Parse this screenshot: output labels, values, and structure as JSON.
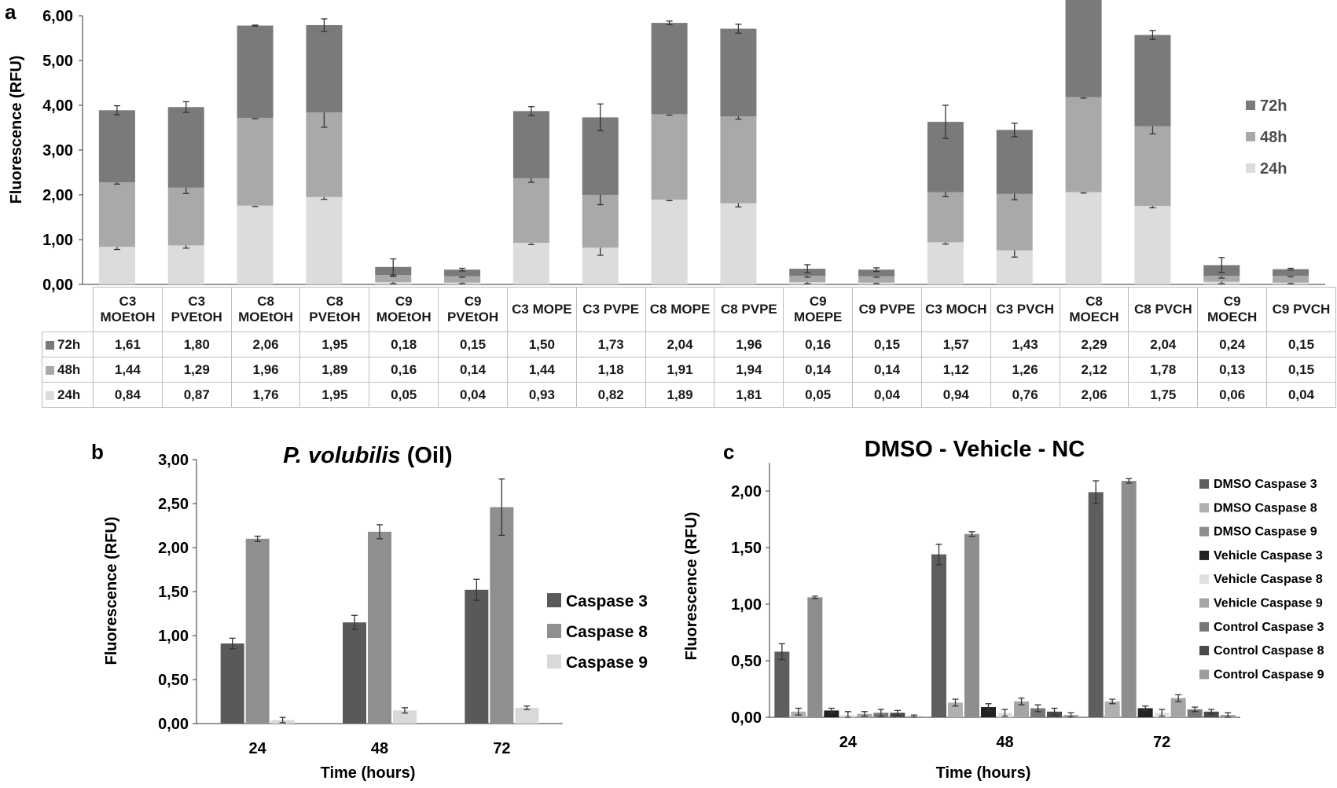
{
  "panel_labels": {
    "a": "a",
    "b": "b",
    "c": "c"
  },
  "colors": {
    "h72": "#7a7a7a",
    "h48": "#a9a9a9",
    "h24": "#dcdcdc",
    "cas3": "#595959",
    "cas8": "#8f8f8f",
    "cas9": "#d9d9d9",
    "dmso3": "#5e5e5e",
    "dmso8": "#b0b0b0",
    "dmso9": "#8e8e8e",
    "veh3": "#222222",
    "veh8": "#e0e0e0",
    "veh9": "#a5a5a5",
    "ctl3": "#777777",
    "ctl8": "#4a4a4a",
    "ctl9": "#9c9c9c",
    "error_bar": "#333333",
    "axis": "#333333"
  },
  "chart_data": [
    {
      "panel": "a",
      "type": "bar",
      "stacked": true,
      "title": "",
      "xlabel": "",
      "ylabel": "Fluorescence (RFU)",
      "ylim": [
        0,
        6
      ],
      "yticks": [
        "0,00",
        "1,00",
        "2,00",
        "3,00",
        "4,00",
        "5,00",
        "6,00"
      ],
      "categories": [
        [
          "C3",
          "MOEtOH"
        ],
        [
          "C3",
          "PVEtOH"
        ],
        [
          "C8",
          "MOEtOH"
        ],
        [
          "C8",
          "PVEtOH"
        ],
        [
          "C9",
          "MOEtOH"
        ],
        [
          "C9",
          "PVEtOH"
        ],
        [
          "C3 MOPE"
        ],
        [
          "C3 PVPE"
        ],
        [
          "C8 MOPE"
        ],
        [
          "C8 PVPE"
        ],
        [
          "C9",
          "MOEPE"
        ],
        [
          "C9 PVPE"
        ],
        [
          "C3 MOCH"
        ],
        [
          "C3 PVCH"
        ],
        [
          "C8",
          "MOECH"
        ],
        [
          "C8 PVCH"
        ],
        [
          "C9",
          "MOECH"
        ],
        [
          "C9 PVCH"
        ]
      ],
      "series": [
        {
          "name": "24h",
          "color_key": "h24",
          "values": [
            0.84,
            0.87,
            1.76,
            1.95,
            0.05,
            0.04,
            0.93,
            0.82,
            1.89,
            1.81,
            0.05,
            0.04,
            0.94,
            0.76,
            2.06,
            1.75,
            0.06,
            0.04
          ],
          "labels": [
            "0,84",
            "0,87",
            "1,76",
            "1,95",
            "0,05",
            "0,04",
            "0,93",
            "0,82",
            "1,89",
            "1,81",
            "0,05",
            "0,04",
            "0,94",
            "0,76",
            "2,06",
            "1,75",
            "0,06",
            "0,04"
          ],
          "errors": [
            0.06,
            0.06,
            0.02,
            0.05,
            0.03,
            0.02,
            0.04,
            0.17,
            0.02,
            0.08,
            0.03,
            0.02,
            0.04,
            0.15,
            0.02,
            0.04,
            0.04,
            0.02
          ]
        },
        {
          "name": "48h",
          "color_key": "h48",
          "values": [
            1.44,
            1.29,
            1.96,
            1.89,
            0.16,
            0.14,
            1.44,
            1.18,
            1.91,
            1.94,
            0.14,
            0.14,
            1.12,
            1.26,
            2.12,
            1.78,
            0.13,
            0.15
          ],
          "labels": [
            "1,44",
            "1,29",
            "1,96",
            "1,89",
            "0,16",
            "0,14",
            "1,44",
            "1,18",
            "1,91",
            "1,94",
            "0,14",
            "0,14",
            "1,12",
            "1,26",
            "2,12",
            "1,78",
            "0,13",
            "0,15"
          ],
          "errors": [
            0.04,
            0.13,
            0.02,
            0.33,
            0.03,
            0.02,
            0.09,
            0.22,
            0.02,
            0.06,
            0.03,
            0.02,
            0.1,
            0.13,
            0.02,
            0.17,
            0.05,
            0.02
          ]
        },
        {
          "name": "72h",
          "color_key": "h72",
          "values": [
            1.61,
            1.8,
            2.06,
            1.95,
            0.18,
            0.15,
            1.5,
            1.73,
            2.04,
            1.96,
            0.16,
            0.15,
            1.57,
            1.43,
            2.29,
            2.04,
            0.24,
            0.15
          ],
          "labels": [
            "1,61",
            "1,80",
            "2,06",
            "1,95",
            "0,18",
            "0,15",
            "1,50",
            "1,73",
            "2,04",
            "1,96",
            "0,16",
            "0,15",
            "1,57",
            "1,43",
            "2,29",
            "2,04",
            "0,24",
            "0,15"
          ],
          "errors": [
            0.1,
            0.12,
            0.01,
            0.14,
            0.18,
            0.03,
            0.1,
            0.3,
            0.04,
            0.1,
            0.09,
            0.04,
            0.37,
            0.15,
            0.02,
            0.1,
            0.17,
            0.02
          ]
        }
      ],
      "legend": [
        "72h",
        "48h",
        "24h"
      ],
      "legend_position": "right"
    },
    {
      "panel": "b",
      "type": "bar",
      "title_italic": "P. volubilis",
      "title_rest": " (Oil)",
      "xlabel": "Time (hours)",
      "ylabel": "Fluorescence (RFU)",
      "ylim": [
        0,
        3
      ],
      "yticks": [
        "0,00",
        "0,50",
        "1,00",
        "1,50",
        "2,00",
        "2,50",
        "3,00"
      ],
      "categories": [
        "24",
        "48",
        "72"
      ],
      "series": [
        {
          "name": "Caspase 3",
          "color_key": "cas3",
          "values": [
            0.91,
            1.15,
            1.52
          ],
          "errors": [
            0.06,
            0.08,
            0.12
          ]
        },
        {
          "name": "Caspase 8",
          "color_key": "cas8",
          "values": [
            2.1,
            2.18,
            2.46
          ],
          "errors": [
            0.03,
            0.08,
            0.32
          ]
        },
        {
          "name": "Caspase 9",
          "color_key": "cas9",
          "values": [
            0.04,
            0.15,
            0.18
          ],
          "errors": [
            0.03,
            0.03,
            0.02
          ]
        }
      ],
      "legend_position": "right"
    },
    {
      "panel": "c",
      "type": "bar",
      "title": "DMSO - Vehicle - NC",
      "xlabel": "Time (hours)",
      "ylabel": "Fluorescence (RFU)",
      "ylim": [
        0,
        2.25
      ],
      "yticks": [
        "0,00",
        "0,50",
        "1,00",
        "1,50",
        "2,00"
      ],
      "categories": [
        "24",
        "48",
        "72"
      ],
      "series": [
        {
          "name": "DMSO Caspase 3",
          "color_key": "dmso3",
          "values": [
            0.58,
            1.44,
            1.99
          ],
          "errors": [
            0.07,
            0.09,
            0.1
          ]
        },
        {
          "name": "DMSO Caspase 8",
          "color_key": "dmso8",
          "values": [
            0.05,
            0.13,
            0.14
          ],
          "errors": [
            0.03,
            0.03,
            0.02
          ]
        },
        {
          "name": "DMSO Caspase 9",
          "color_key": "dmso9",
          "values": [
            1.06,
            1.62,
            2.09
          ],
          "errors": [
            0.01,
            0.02,
            0.02
          ]
        },
        {
          "name": "Vehicle Caspase 3",
          "color_key": "veh3",
          "values": [
            0.06,
            0.09,
            0.08
          ],
          "errors": [
            0.02,
            0.03,
            0.02
          ]
        },
        {
          "name": "Vehicle Caspase 8",
          "color_key": "veh8",
          "values": [
            0.02,
            0.04,
            0.04
          ],
          "errors": [
            0.03,
            0.03,
            0.03
          ]
        },
        {
          "name": "Vehicle Caspase 9",
          "color_key": "veh9",
          "values": [
            0.03,
            0.14,
            0.17
          ],
          "errors": [
            0.02,
            0.03,
            0.03
          ]
        },
        {
          "name": "Control Caspase 3",
          "color_key": "ctl3",
          "values": [
            0.04,
            0.08,
            0.07
          ],
          "errors": [
            0.03,
            0.03,
            0.02
          ]
        },
        {
          "name": "Control Caspase 8",
          "color_key": "ctl8",
          "values": [
            0.04,
            0.05,
            0.05
          ],
          "errors": [
            0.02,
            0.03,
            0.02
          ]
        },
        {
          "name": "Control Caspase 9",
          "color_key": "ctl9",
          "values": [
            0.01,
            0.02,
            0.02
          ],
          "errors": [
            0.01,
            0.02,
            0.02
          ]
        }
      ],
      "legend_position": "right"
    }
  ]
}
